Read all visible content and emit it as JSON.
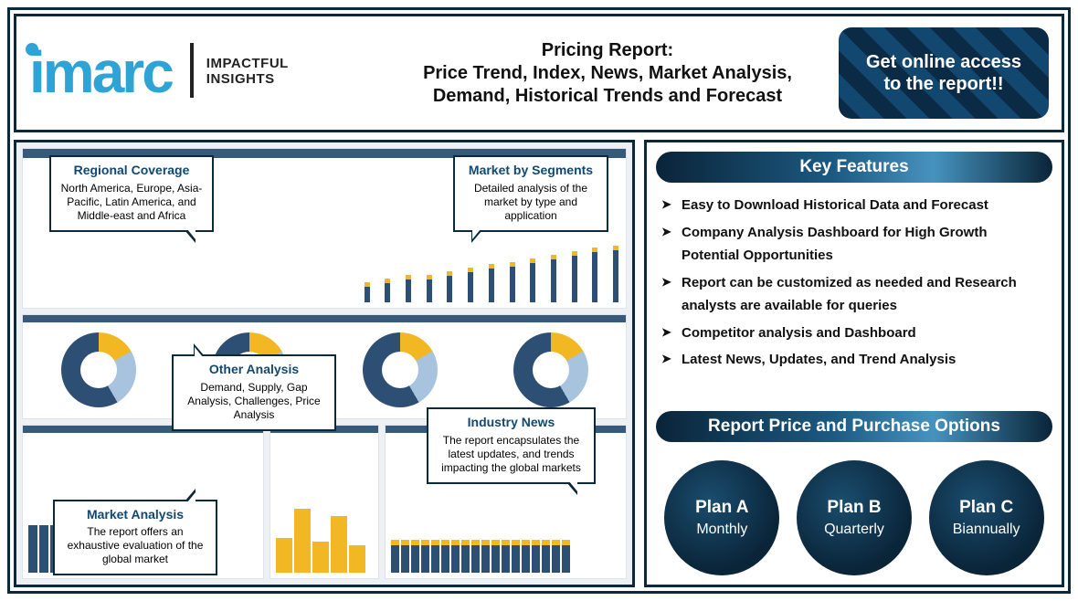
{
  "brand": {
    "name": "imarc",
    "tagline_l1": "IMPACTFUL",
    "tagline_l2": "INSIGHTS",
    "logo_color": "#2ea3d6"
  },
  "title_l1": "Pricing Report:",
  "title_l2": "Price Trend, Index, News, Market Analysis, Demand, Historical Trends and Forecast",
  "cta_text": "Get online access to the report!!",
  "callouts": {
    "regional": {
      "title": "Regional Coverage",
      "body": "North America, Europe, Asia-Pacific, Latin America, and Middle-east and Africa"
    },
    "segments": {
      "title": "Market by Segments",
      "body": "Detailed analysis of the market by type and application"
    },
    "other": {
      "title": "Other Analysis",
      "body": "Demand, Supply, Gap Analysis, Challenges, Price Analysis"
    },
    "news": {
      "title": "Industry News",
      "body": "The report encapsulates the latest updates, and trends impacting the global markets"
    },
    "market": {
      "title": "Market Analysis",
      "body": "The report offers an exhaustive evaluation of the global market"
    }
  },
  "key_features_header": "Key Features",
  "features": [
    "Easy to Download Historical Data and Forecast",
    "Company Analysis Dashboard for High Growth Potential Opportunities",
    "Report can be customized as needed and Research analysts are available for queries",
    "Competitor analysis and Dashboard",
    "Latest News, Updates, and Trend Analysis"
  ],
  "pricing_header": "Report Price and Purchase Options",
  "plans": [
    {
      "name": "Plan A",
      "period": "Monthly"
    },
    {
      "name": "Plan B",
      "period": "Quarterly"
    },
    {
      "name": "Plan C",
      "period": "Biannually"
    }
  ],
  "colors": {
    "border": "#0a2a3a",
    "bar_primary": "#2e4f74",
    "bar_accent": "#f2b824",
    "bar_light": "#a7c3de"
  },
  "dashboard": {
    "top_bars": [
      22,
      26,
      30,
      30,
      34,
      38,
      42,
      44,
      48,
      52,
      56,
      60,
      62
    ],
    "blue_bars": [
      52,
      52,
      52,
      52,
      52,
      52,
      52,
      52,
      52,
      52,
      52,
      52,
      52,
      52,
      52,
      52,
      52
    ],
    "yellow_bars": [
      38,
      70,
      34,
      62,
      30
    ],
    "stacked_bars": [
      36,
      36,
      36,
      36,
      36,
      36,
      36,
      36,
      36,
      36,
      36,
      36,
      36,
      36,
      36,
      36,
      36,
      36
    ]
  }
}
